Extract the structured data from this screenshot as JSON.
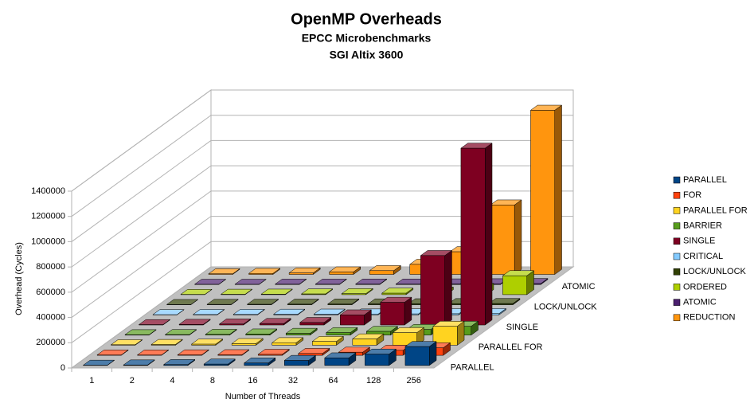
{
  "chart_data": {
    "type": "bar3d",
    "title": "OpenMP Overheads",
    "subtitle": [
      "EPCC Microbenchmarks",
      "SGI Altix 3600"
    ],
    "x_label": "Number of Threads",
    "y_label": "Overhead (Cycles)",
    "categories": [
      "1",
      "2",
      "4",
      "8",
      "16",
      "32",
      "64",
      "128",
      "256"
    ],
    "ylim": [
      0,
      1400000
    ],
    "yticks": [
      0,
      200000,
      400000,
      600000,
      800000,
      1000000,
      1200000,
      1400000
    ],
    "grid": true,
    "legend": "right",
    "depth_label_step": 2,
    "series": [
      {
        "name": "PARALLEL",
        "color": "#004586",
        "values": [
          2000,
          4000,
          7000,
          11000,
          20000,
          40000,
          60000,
          90000,
          150000
        ]
      },
      {
        "name": "FOR",
        "color": "#ff420e",
        "values": [
          3000,
          3000,
          4000,
          5000,
          8000,
          15000,
          25000,
          40000,
          60000
        ]
      },
      {
        "name": "PARALLEL FOR",
        "color": "#ffd320",
        "values": [
          4000,
          6000,
          9000,
          13000,
          20000,
          30000,
          50000,
          100000,
          150000
        ]
      },
      {
        "name": "BARRIER",
        "color": "#579d1c",
        "values": [
          3000,
          4000,
          6000,
          9000,
          14000,
          20000,
          30000,
          45000,
          70000
        ]
      },
      {
        "name": "SINGLE",
        "color": "#7e0021",
        "values": [
          3000,
          5000,
          8000,
          12000,
          20000,
          80000,
          180000,
          550000,
          1400000
        ]
      },
      {
        "name": "CRITICAL",
        "color": "#83caff",
        "values": [
          2000,
          3000,
          4000,
          5000,
          6000,
          7000,
          8000,
          9000,
          10000
        ]
      },
      {
        "name": "LOCK/UNLOCK",
        "color": "#314004",
        "values": [
          2000,
          3000,
          4000,
          5000,
          6000,
          7000,
          8000,
          9000,
          10000
        ]
      },
      {
        "name": "ORDERED",
        "color": "#aecf00",
        "values": [
          2000,
          3000,
          4000,
          6000,
          8000,
          12000,
          20000,
          50000,
          150000
        ]
      },
      {
        "name": "ATOMIC",
        "color": "#4b1f6f",
        "values": [
          2000,
          2000,
          3000,
          3000,
          4000,
          4000,
          5000,
          6000,
          8000
        ]
      },
      {
        "name": "REDUCTION",
        "color": "#ff950e",
        "values": [
          5000,
          8000,
          12000,
          20000,
          30000,
          80000,
          180000,
          550000,
          1300000
        ]
      }
    ]
  }
}
